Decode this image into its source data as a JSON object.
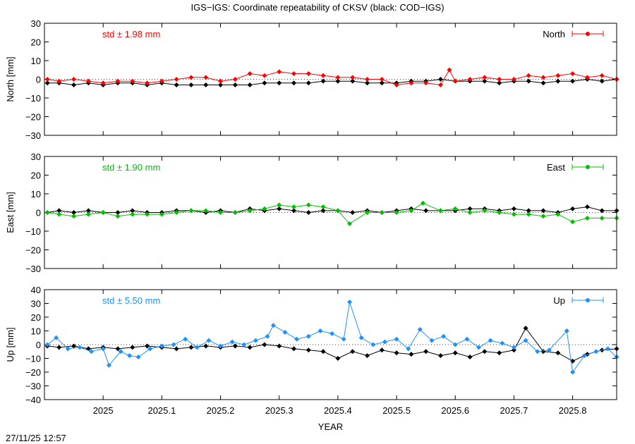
{
  "title": "IGS−IGS: Coordinate repeatability of CKSV (black: COD−IGS)",
  "timestamp": "27/11/25 12:57",
  "chart_data": [
    {
      "type": "scatter",
      "component": "north",
      "ylabel": "North [mm]",
      "ylim": [
        -30,
        30
      ],
      "yticks": [
        -30,
        -20,
        -10,
        0,
        10,
        20,
        30
      ],
      "xlim": [
        2024.9,
        2025.875
      ],
      "std_label": "std ± 1.98 mm",
      "legend": "North",
      "color": "#ff0000",
      "ref_color": "#000000",
      "series_main": {
        "x": [
          2024.905,
          2024.925,
          2024.95,
          2024.975,
          2025.0,
          2025.025,
          2025.05,
          2025.075,
          2025.1,
          2025.125,
          2025.15,
          2025.175,
          2025.2,
          2025.225,
          2025.25,
          2025.275,
          2025.3,
          2025.325,
          2025.35,
          2025.375,
          2025.4,
          2025.425,
          2025.45,
          2025.475,
          2025.5,
          2025.525,
          2025.55,
          2025.575,
          2025.59,
          2025.6,
          2025.625,
          2025.65,
          2025.675,
          2025.7,
          2025.725,
          2025.75,
          2025.775,
          2025.8,
          2025.825,
          2025.85,
          2025.875
        ],
        "y": [
          0,
          -1,
          0,
          -1,
          -2,
          -1,
          -1,
          -2,
          -1,
          0,
          1,
          1,
          -1,
          0,
          3,
          2,
          4,
          3,
          3,
          2,
          1,
          1,
          0,
          0,
          -3,
          -2,
          -2,
          -3,
          5,
          -1,
          0,
          1,
          0,
          0,
          2,
          1,
          2,
          3,
          1,
          2,
          0
        ]
      },
      "series_ref": {
        "x": [
          2024.905,
          2024.925,
          2024.95,
          2024.975,
          2025.0,
          2025.025,
          2025.05,
          2025.075,
          2025.1,
          2025.125,
          2025.15,
          2025.175,
          2025.2,
          2025.225,
          2025.25,
          2025.275,
          2025.3,
          2025.325,
          2025.35,
          2025.375,
          2025.4,
          2025.425,
          2025.45,
          2025.475,
          2025.5,
          2025.525,
          2025.55,
          2025.575,
          2025.6,
          2025.625,
          2025.65,
          2025.675,
          2025.7,
          2025.725,
          2025.75,
          2025.775,
          2025.8,
          2025.825,
          2025.85,
          2025.875
        ],
        "y": [
          -2,
          -2,
          -3,
          -2,
          -3,
          -2,
          -2,
          -3,
          -2,
          -3,
          -3,
          -3,
          -3,
          -3,
          -3,
          -2,
          -2,
          -2,
          -2,
          -1,
          -1,
          -1,
          -2,
          -2,
          -2,
          -1,
          -1,
          0,
          -1,
          -1,
          -1,
          -2,
          -1,
          -1,
          -2,
          -1,
          -1,
          0,
          -1,
          0
        ]
      }
    },
    {
      "type": "scatter",
      "component": "east",
      "ylabel": "East [mm]",
      "ylim": [
        -30,
        30
      ],
      "yticks": [
        -30,
        -20,
        -10,
        0,
        10,
        20,
        30
      ],
      "xlim": [
        2024.9,
        2025.875
      ],
      "std_label": "std ± 1.90 mm",
      "legend": "East",
      "color": "#00c000",
      "ref_color": "#000000",
      "series_main": {
        "x": [
          2024.905,
          2024.925,
          2024.95,
          2024.975,
          2025.0,
          2025.025,
          2025.05,
          2025.075,
          2025.1,
          2025.125,
          2025.15,
          2025.175,
          2025.2,
          2025.225,
          2025.25,
          2025.275,
          2025.3,
          2025.325,
          2025.35,
          2025.375,
          2025.4,
          2025.42,
          2025.45,
          2025.475,
          2025.5,
          2025.525,
          2025.545,
          2025.575,
          2025.6,
          2025.625,
          2025.65,
          2025.675,
          2025.7,
          2025.725,
          2025.75,
          2025.775,
          2025.8,
          2025.825,
          2025.85,
          2025.875
        ],
        "y": [
          0,
          -1,
          -2,
          -1,
          0,
          -2,
          -1,
          -1,
          -1,
          0,
          1,
          1,
          0,
          0,
          1,
          2,
          4,
          3,
          4,
          3,
          1,
          -6,
          0,
          0,
          0,
          1,
          5,
          1,
          2,
          0,
          1,
          0,
          -1,
          -1,
          -2,
          -1,
          -5,
          -3,
          -3,
          -3
        ]
      },
      "series_ref": {
        "x": [
          2024.905,
          2024.925,
          2024.95,
          2024.975,
          2025.0,
          2025.025,
          2025.05,
          2025.075,
          2025.1,
          2025.125,
          2025.15,
          2025.175,
          2025.2,
          2025.225,
          2025.25,
          2025.275,
          2025.3,
          2025.325,
          2025.35,
          2025.375,
          2025.4,
          2025.425,
          2025.45,
          2025.475,
          2025.5,
          2025.525,
          2025.55,
          2025.575,
          2025.6,
          2025.625,
          2025.65,
          2025.675,
          2025.7,
          2025.725,
          2025.75,
          2025.775,
          2025.8,
          2025.825,
          2025.85,
          2025.875
        ],
        "y": [
          0,
          1,
          0,
          1,
          0,
          0,
          1,
          0,
          0,
          1,
          1,
          0,
          1,
          0,
          2,
          1,
          2,
          1,
          0,
          1,
          1,
          0,
          1,
          0,
          1,
          2,
          1,
          1,
          1,
          2,
          2,
          1,
          2,
          1,
          1,
          0,
          2,
          3,
          1,
          1
        ]
      }
    },
    {
      "type": "scatter",
      "component": "up",
      "ylabel": "Up [mm]",
      "ylim": [
        -40,
        40
      ],
      "yticks": [
        -40,
        -30,
        -20,
        -10,
        0,
        10,
        20,
        30,
        40
      ],
      "xlim": [
        2024.9,
        2025.875
      ],
      "xticks": [
        2025,
        2025.1,
        2025.2,
        2025.3,
        2025.4,
        2025.5,
        2025.6,
        2025.7,
        2025.8
      ],
      "xticklabels": [
        "2025",
        "2025.1",
        "2025.2",
        "2025.3",
        "2025.4",
        "2025.5",
        "2025.6",
        "2025.7",
        "2025.8"
      ],
      "xlabel": "YEAR",
      "std_label": "std ± 5.50 mm",
      "legend": "Up",
      "color": "#1e90ff",
      "ref_color": "#000000",
      "series_main": {
        "x": [
          2024.905,
          2024.92,
          2024.94,
          2024.96,
          2024.98,
          2025.0,
          2025.01,
          2025.03,
          2025.045,
          2025.06,
          2025.08,
          2025.1,
          2025.12,
          2025.14,
          2025.16,
          2025.18,
          2025.2,
          2025.22,
          2025.24,
          2025.26,
          2025.28,
          2025.29,
          2025.31,
          2025.33,
          2025.35,
          2025.37,
          2025.39,
          2025.41,
          2025.42,
          2025.44,
          2025.46,
          2025.48,
          2025.5,
          2025.52,
          2025.54,
          2025.56,
          2025.58,
          2025.6,
          2025.62,
          2025.64,
          2025.66,
          2025.68,
          2025.7,
          2025.72,
          2025.74,
          2025.76,
          2025.79,
          2025.8,
          2025.82,
          2025.84,
          2025.86,
          2025.875
        ],
        "y": [
          0,
          5,
          -3,
          -2,
          -5,
          -3,
          -15,
          -5,
          -8,
          -9,
          -3,
          -1,
          0,
          4,
          -2,
          3,
          -1,
          2,
          0,
          3,
          6,
          14,
          9,
          4,
          6,
          10,
          8,
          4,
          31,
          5,
          0,
          2,
          4,
          -3,
          11,
          3,
          6,
          0,
          4,
          -2,
          3,
          1,
          -2,
          3,
          -5,
          -4,
          10,
          -20,
          -8,
          -5,
          -3,
          -9
        ]
      },
      "series_ref": {
        "x": [
          2024.905,
          2024.925,
          2024.95,
          2024.975,
          2025.0,
          2025.025,
          2025.05,
          2025.075,
          2025.1,
          2025.125,
          2025.15,
          2025.175,
          2025.2,
          2025.225,
          2025.25,
          2025.275,
          2025.3,
          2025.325,
          2025.35,
          2025.375,
          2025.4,
          2025.425,
          2025.45,
          2025.475,
          2025.5,
          2025.525,
          2025.55,
          2025.575,
          2025.6,
          2025.625,
          2025.65,
          2025.675,
          2025.7,
          2025.72,
          2025.75,
          2025.775,
          2025.8,
          2025.825,
          2025.85,
          2025.875
        ],
        "y": [
          -1,
          -2,
          -1,
          -3,
          -2,
          -3,
          -2,
          -1,
          -2,
          -3,
          -2,
          -1,
          -2,
          -1,
          -2,
          0,
          -1,
          -3,
          -4,
          -5,
          -10,
          -5,
          -8,
          -4,
          -6,
          -7,
          -5,
          -8,
          -6,
          -9,
          -5,
          -6,
          -4,
          12,
          -5,
          -6,
          -12,
          -7,
          -4,
          -3
        ]
      }
    }
  ]
}
